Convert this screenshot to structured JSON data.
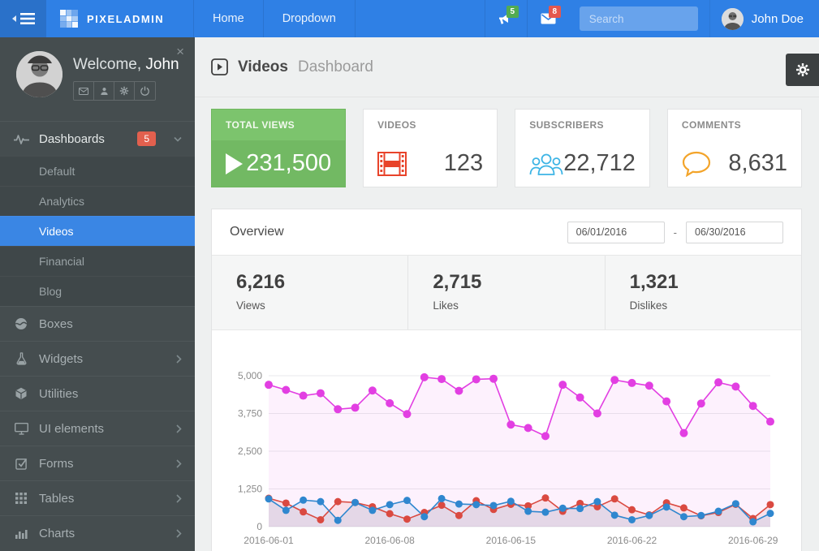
{
  "navbar": {
    "brand": "PIXELADMIN",
    "items": [
      {
        "label": "Home"
      },
      {
        "label": "Dropdown"
      }
    ],
    "notifications": {
      "megaphone_count": "5",
      "envelope_count": "8"
    },
    "search": {
      "placeholder": "Search"
    },
    "user": {
      "name": "John Doe"
    }
  },
  "sidebar": {
    "profile": {
      "welcome_prefix": "Welcome,",
      "name": "John"
    },
    "menu": {
      "dashboards": {
        "label": "Dashboards",
        "badge": "5"
      },
      "dashboards_sub": [
        {
          "label": "Default"
        },
        {
          "label": "Analytics"
        },
        {
          "label": "Videos"
        },
        {
          "label": "Financial"
        },
        {
          "label": "Blog"
        }
      ],
      "items": [
        {
          "label": "Boxes"
        },
        {
          "label": "Widgets"
        },
        {
          "label": "Utilities"
        },
        {
          "label": "UI elements"
        },
        {
          "label": "Forms"
        },
        {
          "label": "Tables"
        },
        {
          "label": "Charts"
        }
      ]
    }
  },
  "page": {
    "title": "Videos",
    "subtitle": "Dashboard"
  },
  "cards": [
    {
      "label": "TOTAL VIEWS",
      "value": "231,500",
      "icon": "play-icon",
      "accent": "#72b963"
    },
    {
      "label": "VIDEOS",
      "value": "123",
      "icon": "film-icon",
      "accent": "#e8432a"
    },
    {
      "label": "SUBSCRIBERS",
      "value": "22,712",
      "icon": "users-icon",
      "accent": "#3cb4e5"
    },
    {
      "label": "COMMENTS",
      "value": "8,631",
      "icon": "chat-icon",
      "accent": "#f3a42a"
    }
  ],
  "overview": {
    "title": "Overview",
    "date_from": "06/01/2016",
    "date_separator": "-",
    "date_to": "06/30/2016",
    "stats": [
      {
        "value": "6,216",
        "label": "Views"
      },
      {
        "value": "2,715",
        "label": "Likes"
      },
      {
        "value": "1,321",
        "label": "Dislikes"
      }
    ]
  },
  "chart_data": {
    "type": "line",
    "title": "Overview",
    "xlabel": "",
    "ylabel": "",
    "ylim": [
      0,
      5000
    ],
    "grid": true,
    "legend_position": "none",
    "x": [
      "2016-06-01",
      "2016-06-02",
      "2016-06-03",
      "2016-06-04",
      "2016-06-05",
      "2016-06-06",
      "2016-06-07",
      "2016-06-08",
      "2016-06-09",
      "2016-06-10",
      "2016-06-11",
      "2016-06-12",
      "2016-06-13",
      "2016-06-14",
      "2016-06-15",
      "2016-06-16",
      "2016-06-17",
      "2016-06-18",
      "2016-06-19",
      "2016-06-20",
      "2016-06-21",
      "2016-06-22",
      "2016-06-23",
      "2016-06-24",
      "2016-06-25",
      "2016-06-26",
      "2016-06-27",
      "2016-06-28",
      "2016-06-29",
      "2016-06-30"
    ],
    "x_tick_labels": [
      "2016-06-01",
      "2016-06-08",
      "2016-06-15",
      "2016-06-22",
      "2016-06-29"
    ],
    "x_tick_positions": [
      0,
      7,
      14,
      21,
      28
    ],
    "y_ticks": [
      "0",
      "1,250",
      "2,500",
      "3,750",
      "5,000"
    ],
    "series": [
      {
        "name": "Views",
        "color": "#e23fe2",
        "fill": "rgba(226,63,226,0.07)",
        "point_radius": 5,
        "values": [
          4700,
          4530,
          4340,
          4420,
          3890,
          3940,
          4510,
          4090,
          3730,
          4950,
          4890,
          4500,
          4880,
          4900,
          3380,
          3270,
          3000,
          4700,
          4280,
          3750,
          4860,
          4760,
          4670,
          4150,
          3100,
          4080,
          4780,
          4640,
          4000,
          3480
        ]
      },
      {
        "name": "Dislikes",
        "color": "#da4a41",
        "fill": "rgba(218,74,65,0.10)",
        "point_radius": 4.5,
        "values": [
          940,
          780,
          490,
          230,
          830,
          800,
          660,
          430,
          250,
          470,
          710,
          370,
          860,
          570,
          740,
          690,
          950,
          510,
          770,
          660,
          920,
          560,
          390,
          790,
          620,
          360,
          470,
          740,
          270,
          730
        ]
      },
      {
        "name": "Likes",
        "color": "#2f87cf",
        "fill": "rgba(47,135,207,0.10)",
        "point_radius": 4.5,
        "values": [
          920,
          540,
          880,
          830,
          210,
          800,
          540,
          730,
          870,
          330,
          930,
          750,
          730,
          700,
          840,
          510,
          480,
          610,
          600,
          830,
          380,
          230,
          370,
          650,
          330,
          370,
          510,
          760,
          160,
          440
        ]
      }
    ]
  }
}
